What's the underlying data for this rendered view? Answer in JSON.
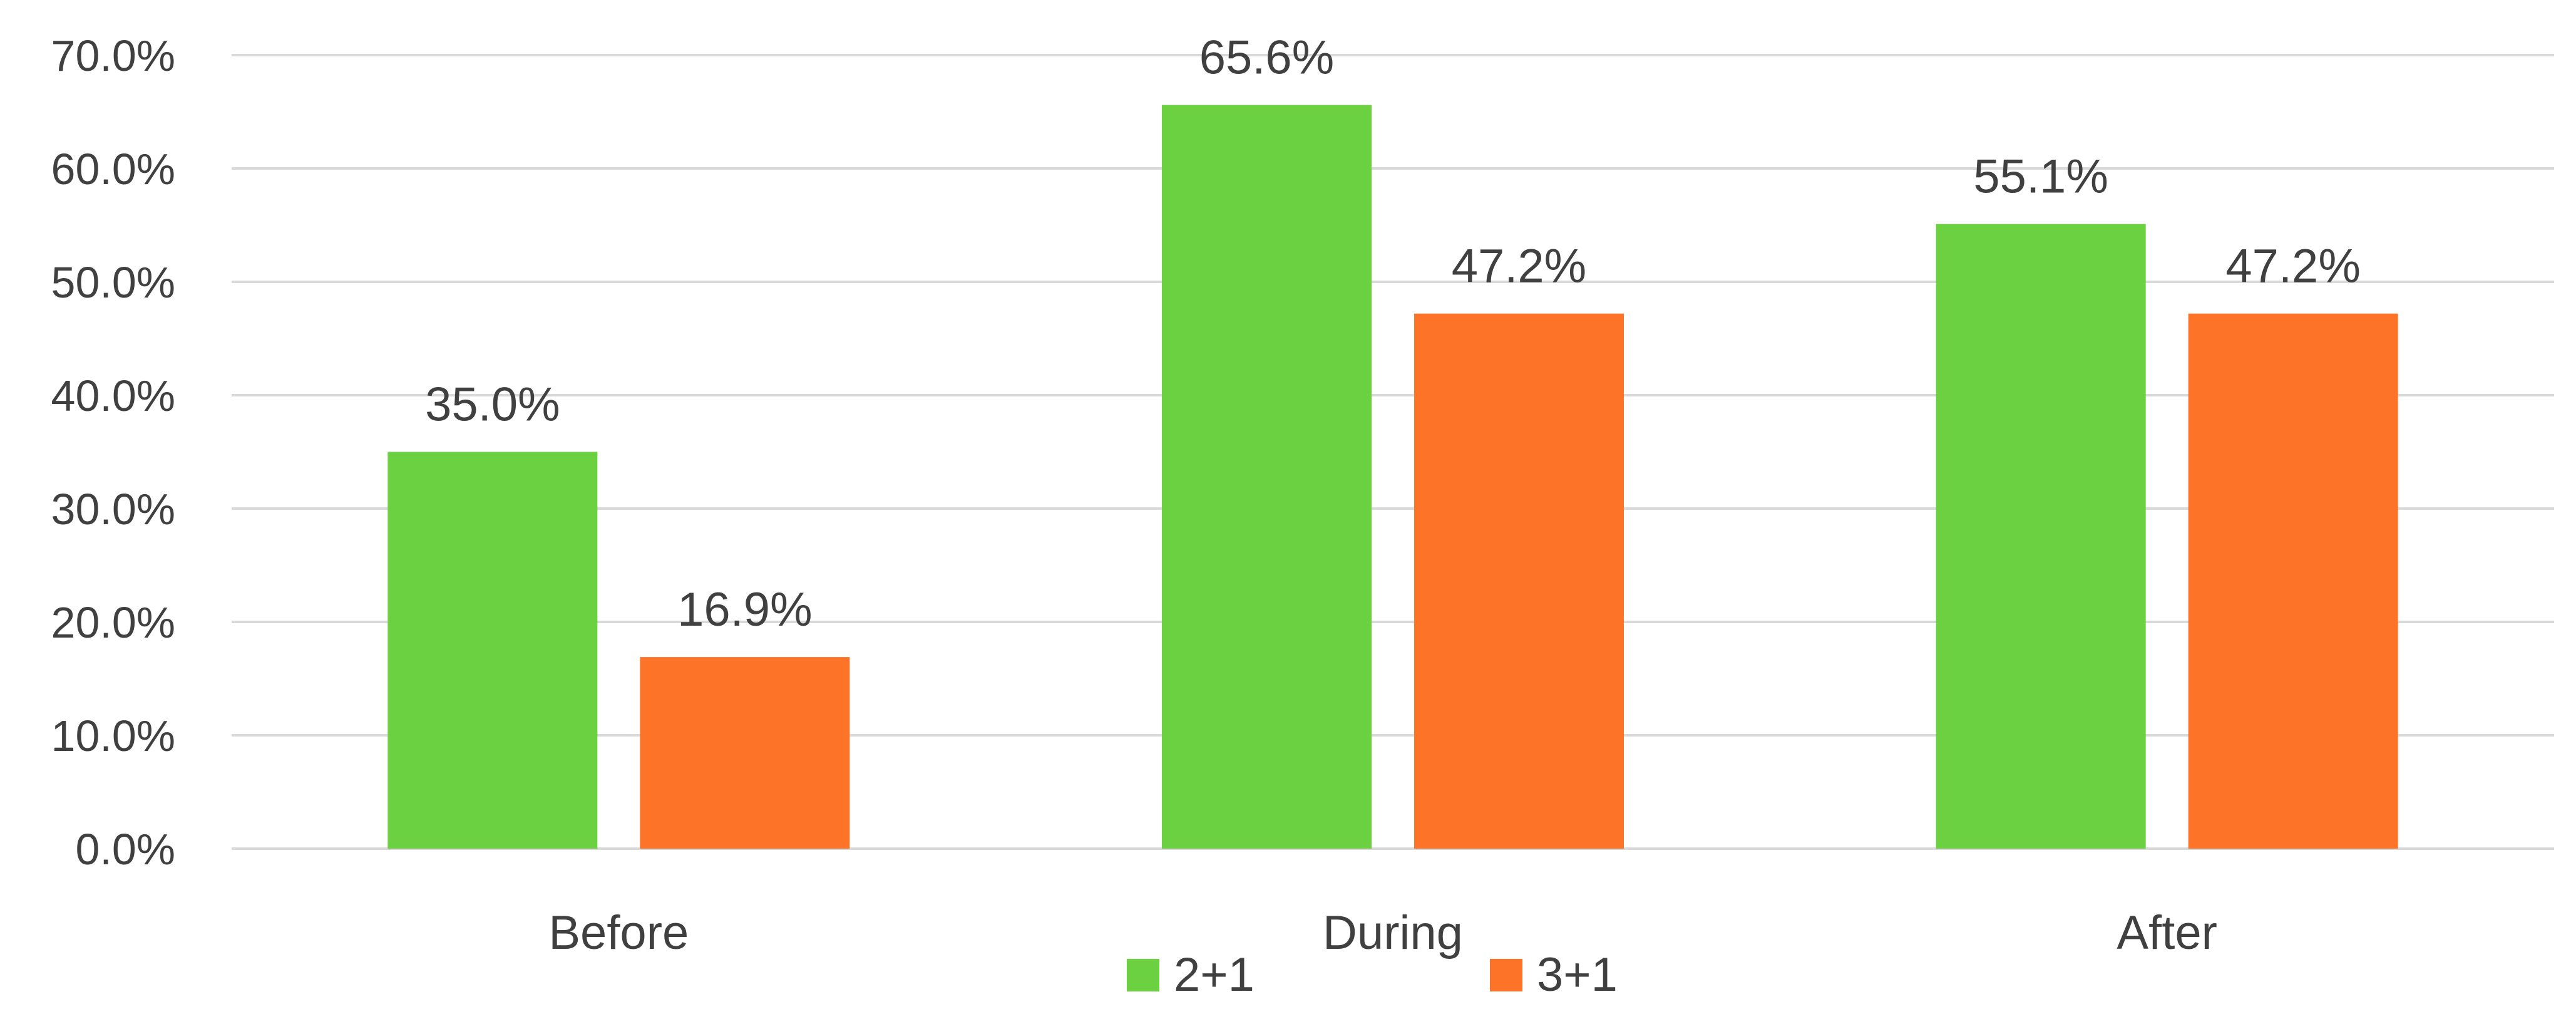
{
  "chart_data": {
    "type": "bar",
    "categories": [
      "Before",
      "During",
      "After"
    ],
    "series": [
      {
        "name": "2+1",
        "color": "#6bd140",
        "values": [
          35.0,
          65.6,
          55.1
        ]
      },
      {
        "name": "3+1",
        "color": "#fd7327",
        "values": [
          16.9,
          47.2,
          47.2
        ]
      }
    ],
    "data_labels": [
      [
        "35.0%",
        "65.6%",
        "55.1%"
      ],
      [
        "16.9%",
        "47.2%",
        "47.2%"
      ]
    ],
    "y_ticks": [
      "0.0%",
      "10.0%",
      "20.0%",
      "30.0%",
      "40.0%",
      "50.0%",
      "60.0%",
      "70.0%"
    ],
    "ylim": [
      0,
      70
    ],
    "grid": true,
    "legend_position": "bottom",
    "gridline_color": "#d9d9d9",
    "text_color": "#404040"
  }
}
